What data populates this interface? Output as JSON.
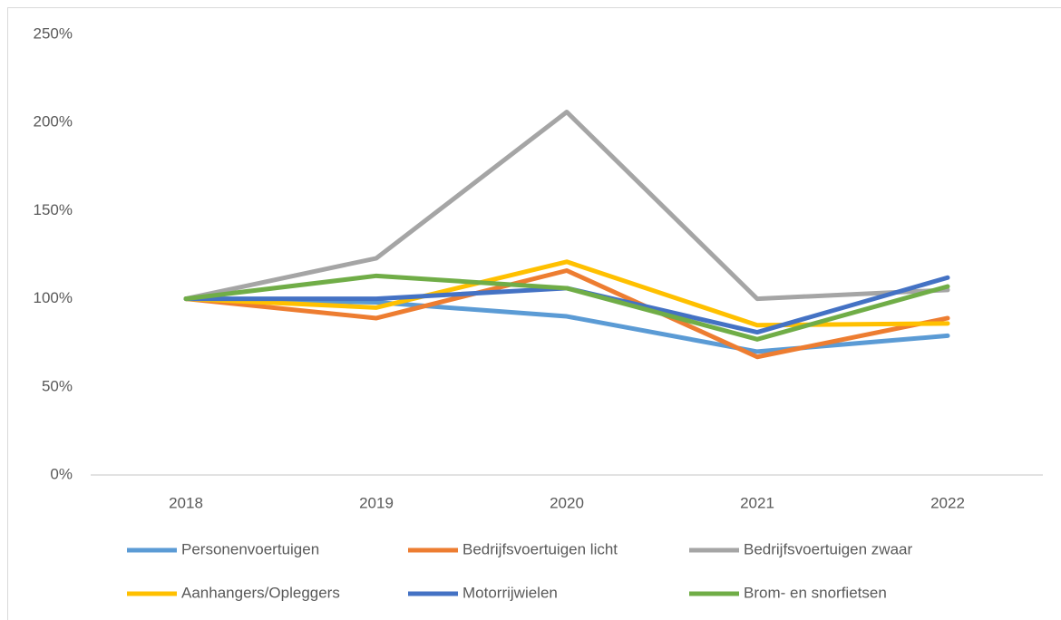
{
  "chart_data": {
    "type": "line",
    "categories": [
      "2018",
      "2019",
      "2020",
      "2021",
      "2022"
    ],
    "series": [
      {
        "name": "Personenvoertuigen",
        "color": "#5b9bd5",
        "values": [
          100,
          98,
          90,
          70,
          79
        ]
      },
      {
        "name": "Bedrijfsvoertuigen licht",
        "color": "#ed7d31",
        "values": [
          100,
          89,
          116,
          67,
          89
        ]
      },
      {
        "name": "Bedrijfsvoertuigen zwaar",
        "color": "#a5a5a5",
        "values": [
          100,
          123,
          206,
          100,
          105
        ]
      },
      {
        "name": "Aanhangers/Opleggers",
        "color": "#ffc000",
        "values": [
          100,
          95,
          121,
          85,
          86
        ]
      },
      {
        "name": "Motorrijwielen",
        "color": "#4472c4",
        "values": [
          100,
          100,
          106,
          81,
          112
        ]
      },
      {
        "name": "Brom- en snorfietsen",
        "color": "#70ad47",
        "values": [
          100,
          113,
          106,
          77,
          107
        ]
      }
    ],
    "ylim": [
      0,
      250
    ],
    "yticks": [
      {
        "value": 0,
        "label": "0%"
      },
      {
        "value": 50,
        "label": "50%"
      },
      {
        "value": 100,
        "label": "100%"
      },
      {
        "value": 150,
        "label": "150%"
      },
      {
        "value": 200,
        "label": "200%"
      },
      {
        "value": 250,
        "label": "250%"
      }
    ],
    "grid": false,
    "legend": "bottom"
  }
}
